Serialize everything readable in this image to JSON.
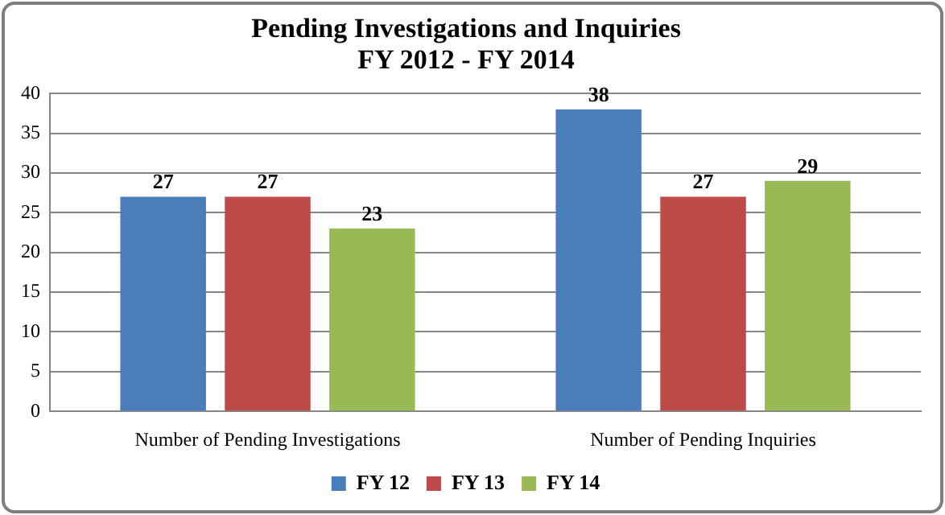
{
  "chart_data": {
    "type": "bar",
    "title": "Pending Investigations and Inquiries\nFY 2012 - FY 2014",
    "categories": [
      "Number of Pending Investigations",
      "Number of Pending Inquiries"
    ],
    "series": [
      {
        "name": "FY 12",
        "color": "#4a7ebb",
        "values": [
          27,
          38
        ]
      },
      {
        "name": "FY 13",
        "color": "#be4b48",
        "values": [
          27,
          27
        ]
      },
      {
        "name": "FY 14",
        "color": "#98b954",
        "values": [
          23,
          29
        ]
      }
    ],
    "ylim": [
      0,
      40
    ],
    "yticks": [
      0,
      5,
      10,
      15,
      20,
      25,
      30,
      35,
      40
    ],
    "grid": "y",
    "legend": "bottom",
    "data_labels": true
  }
}
